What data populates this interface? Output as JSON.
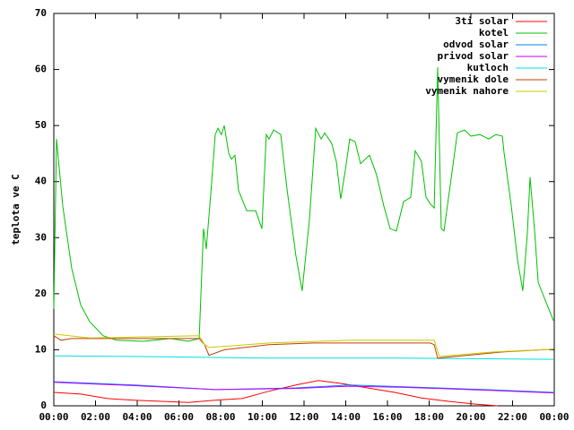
{
  "chart_data": {
    "type": "line",
    "ylabel": "teplota ve C",
    "xlim": [
      0,
      24
    ],
    "ylim": [
      0,
      70
    ],
    "xticks": [
      {
        "value": 0,
        "label": "00:00"
      },
      {
        "value": 2,
        "label": "02:00"
      },
      {
        "value": 4,
        "label": "04:00"
      },
      {
        "value": 6,
        "label": "06:00"
      },
      {
        "value": 8,
        "label": "08:00"
      },
      {
        "value": 10,
        "label": "10:00"
      },
      {
        "value": 12,
        "label": "12:00"
      },
      {
        "value": 14,
        "label": "14:00"
      },
      {
        "value": 16,
        "label": "16:00"
      },
      {
        "value": 18,
        "label": "18:00"
      },
      {
        "value": 20,
        "label": "20:00"
      },
      {
        "value": 22,
        "label": "22:00"
      },
      {
        "value": 24,
        "label": "00:00"
      }
    ],
    "yticks": [
      0,
      10,
      20,
      30,
      40,
      50,
      60,
      70
    ],
    "grid": false,
    "legend": "top-right",
    "series": [
      {
        "name": "3ti solar",
        "color": "#ff0000",
        "x": [
          0,
          1.29,
          2.58,
          3.87,
          5.16,
          6.45,
          7.74,
          9.03,
          10.32,
          11.61,
          12.69,
          13.76,
          15.05,
          16.34,
          17.63,
          18.92,
          20.22,
          21.29
        ],
        "values": [
          2.4,
          2.1,
          1.3,
          1.0,
          0.8,
          0.6,
          1.0,
          1.3,
          2.6,
          3.7,
          4.5,
          4.0,
          3.2,
          2.4,
          1.4,
          0.8,
          0.3,
          0
        ]
      },
      {
        "name": "kotel",
        "color": "#00c000",
        "x": [
          0,
          0.13,
          0.43,
          0.86,
          1.29,
          1.72,
          2.37,
          3.01,
          4.3,
          5.59,
          6.45,
          6.97,
          7.18,
          7.31,
          7.53,
          7.74,
          7.87,
          8.04,
          8.17,
          8.39,
          8.52,
          8.69,
          8.86,
          9.25,
          9.68,
          9.98,
          10.19,
          10.32,
          10.54,
          10.88,
          11.18,
          11.61,
          11.91,
          12.26,
          12.56,
          12.82,
          12.99,
          13.33,
          13.55,
          13.76,
          13.98,
          14.19,
          14.45,
          14.71,
          15.14,
          15.48,
          15.83,
          16.13,
          16.43,
          16.77,
          17.12,
          17.33,
          17.63,
          17.85,
          18.06,
          18.24,
          18.41,
          18.58,
          18.71,
          19.05,
          19.35,
          19.7,
          20.0,
          20.43,
          20.86,
          21.2,
          21.51,
          21.59,
          21.94,
          22.24,
          22.49,
          22.71,
          22.84,
          23.05,
          23.23,
          23.53,
          23.96
        ],
        "values": [
          17.3,
          47.6,
          35.6,
          24.5,
          18,
          15,
          12.5,
          11.7,
          11.5,
          12,
          11.5,
          12,
          31.6,
          28,
          38,
          48.4,
          49.5,
          48.4,
          50,
          45,
          44,
          44.7,
          38.4,
          34.8,
          34.8,
          31.6,
          48.4,
          47.6,
          49.2,
          48.4,
          38.8,
          26.8,
          20.5,
          33.2,
          49.5,
          47.6,
          48.7,
          46.8,
          43.6,
          36.9,
          42,
          47.6,
          47.1,
          43.2,
          44.7,
          41.2,
          35.6,
          31.6,
          31.2,
          36.4,
          37.2,
          45.5,
          43.6,
          37.2,
          36,
          35.3,
          60.4,
          31.6,
          31.2,
          40.4,
          48.7,
          49.2,
          48.1,
          48.4,
          47.6,
          48.4,
          48.1,
          45.2,
          35.6,
          26,
          20.5,
          30.8,
          40.8,
          31.6,
          22,
          19.2,
          15.2
        ]
      },
      {
        "name": "odvod solar",
        "color": "#0080ff",
        "x": [
          0,
          3.87,
          7.74,
          11.61,
          14.19,
          16.77,
          20.65,
          23.96
        ],
        "values": [
          4.3,
          3.7,
          2.9,
          3.2,
          3.7,
          3.4,
          2.9,
          2.4
        ]
      },
      {
        "name": "privod solar",
        "color": "#c000ff",
        "x": [
          0,
          3.87,
          7.74,
          11.61,
          14.19,
          16.77,
          20.65,
          23.96
        ],
        "values": [
          4.2,
          3.6,
          2.9,
          3.1,
          3.5,
          3.3,
          2.8,
          2.3
        ]
      },
      {
        "name": "kutloch",
        "color": "#00e0e0",
        "x": [
          0,
          3.87,
          10.32,
          16.77,
          23.96
        ],
        "values": [
          8.9,
          8.8,
          8.5,
          8.5,
          8.3
        ]
      },
      {
        "name": "vymenik dole",
        "color": "#c04000",
        "x": [
          0,
          0.34,
          0.86,
          6.97,
          7.23,
          7.44,
          8.17,
          10.32,
          12.47,
          18.06,
          18.24,
          18.41,
          19.78,
          21.51,
          23.96
        ],
        "values": [
          12.5,
          11.7,
          12,
          12,
          10.9,
          9,
          10,
          10.9,
          11.2,
          11.2,
          10.9,
          8.5,
          9,
          9.6,
          10.1
        ]
      },
      {
        "name": "vymenik nahore",
        "color": "#c8c800",
        "x": [
          0,
          1.72,
          6.97,
          7.23,
          7.44,
          10.32,
          14.19,
          18.24,
          18.49,
          21.08,
          23.96
        ],
        "values": [
          12.8,
          12.1,
          12.5,
          10.9,
          10.4,
          11.2,
          11.7,
          11.7,
          8.8,
          9.6,
          10.1
        ]
      }
    ]
  }
}
